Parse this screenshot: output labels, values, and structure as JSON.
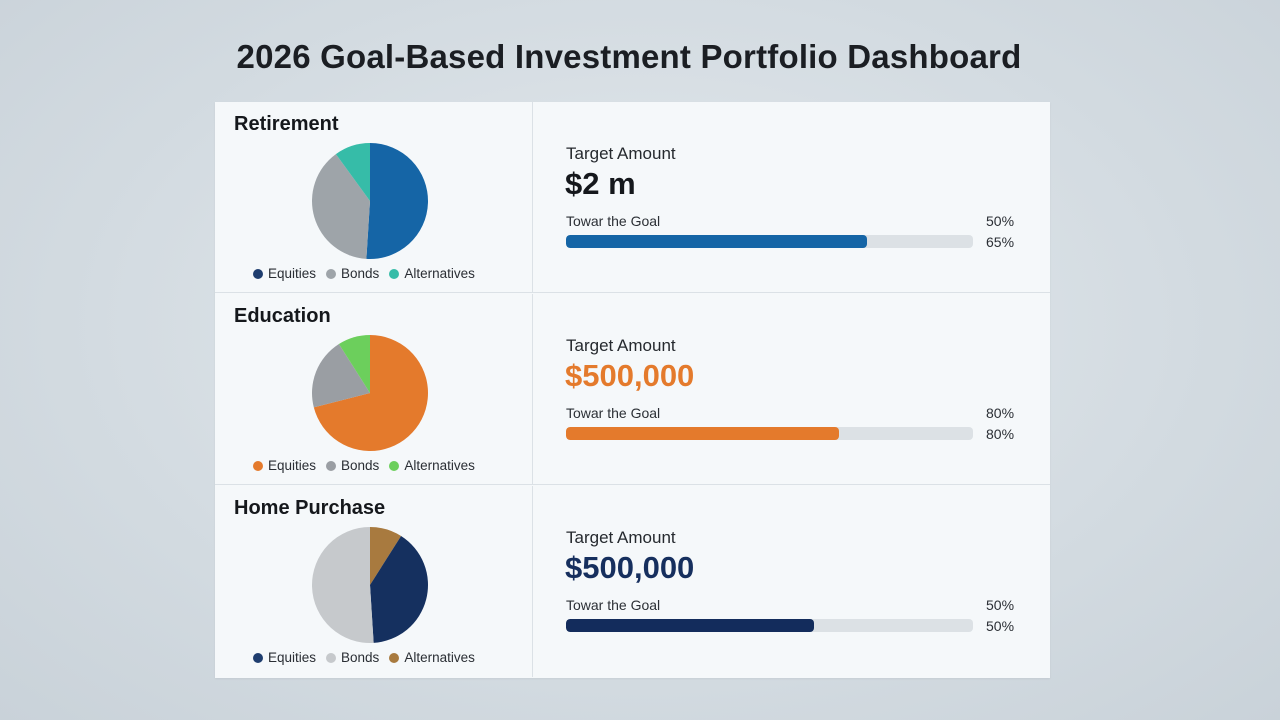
{
  "title": "2026 Goal-Based Investment Portfolio Dashboard",
  "labels": {
    "target": "Target Amount",
    "toward": "Towar the Goal"
  },
  "goals": [
    {
      "name": "Retirement",
      "target_amount": "$2 m",
      "amount_color": "#15181c",
      "progress_fraction": 0.74,
      "progress_text_1": "50%",
      "progress_text_2": "65%",
      "progress_color": "#1565a6"
    },
    {
      "name": "Education",
      "target_amount": "$500,000",
      "amount_color": "#e47a2c",
      "progress_fraction": 0.67,
      "progress_text_1": "80%",
      "progress_text_2": "80%",
      "progress_color": "#e47a2c"
    },
    {
      "name": "Home Purchase",
      "target_amount": "$500,000",
      "amount_color": "#162f5e",
      "progress_fraction": 0.61,
      "progress_text_1": "50%",
      "progress_text_2": "50%",
      "progress_color": "#132c5c"
    }
  ],
  "chart_data": [
    {
      "type": "pie",
      "title": "Retirement",
      "categories": [
        "Equities",
        "Bonds",
        "Alternatives"
      ],
      "values": [
        51,
        39,
        10
      ],
      "slice_colors": [
        "#1565a6",
        "#9ea4a9",
        "#36bca8"
      ],
      "legend_colors": [
        "#1e3d6e",
        "#9ea4a9",
        "#36bca8"
      ],
      "legend_position": "bottom"
    },
    {
      "type": "pie",
      "title": "Education",
      "categories": [
        "Equities",
        "Bonds",
        "Alternatives"
      ],
      "values": [
        71,
        20,
        9
      ],
      "slice_colors": [
        "#e47a2c",
        "#9a9ea3",
        "#6ccf5c"
      ],
      "legend_colors": [
        "#e47a2c",
        "#9a9ea3",
        "#6ccf5c"
      ],
      "legend_position": "bottom"
    },
    {
      "type": "pie",
      "title": "Home Purchase",
      "categories": [
        "Equities",
        "Bonds",
        "Alternatives"
      ],
      "values": [
        40,
        51,
        9
      ],
      "slice_colors": [
        "#15305f",
        "#c6c9cc",
        "#a87a3f"
      ],
      "legend_colors": [
        "#1e3d6e",
        "#c6c9cc",
        "#a87a3f"
      ],
      "legend_position": "bottom",
      "slice_order": [
        2,
        0,
        1
      ]
    }
  ]
}
